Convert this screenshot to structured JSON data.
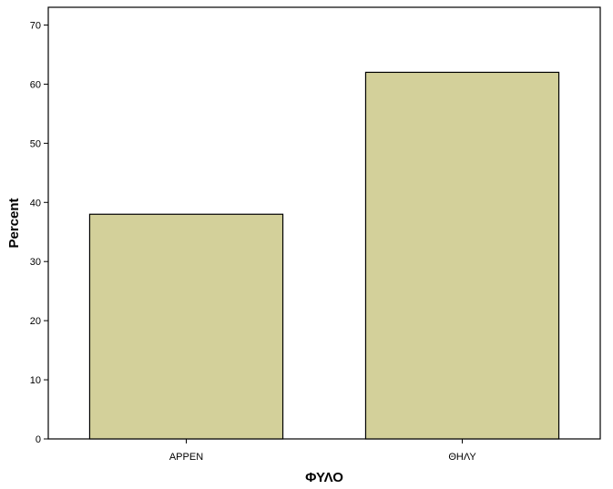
{
  "chart_data": {
    "type": "bar",
    "categories": [
      "ΑΡΡΕΝ",
      "ΘΗΛΥ"
    ],
    "values": [
      38,
      62
    ],
    "xlabel": "ΦΥΛΟ",
    "ylabel": "Percent",
    "ylim": [
      0,
      73
    ],
    "yticks": [
      "0",
      "10",
      "20",
      "30",
      "40",
      "50",
      "60",
      "70"
    ],
    "grid": false,
    "legend": "none",
    "colors": {
      "bar_fill": "#d3d09a",
      "bar_stroke": "#000000",
      "background": "#ffffff",
      "axis": "#000000"
    }
  }
}
